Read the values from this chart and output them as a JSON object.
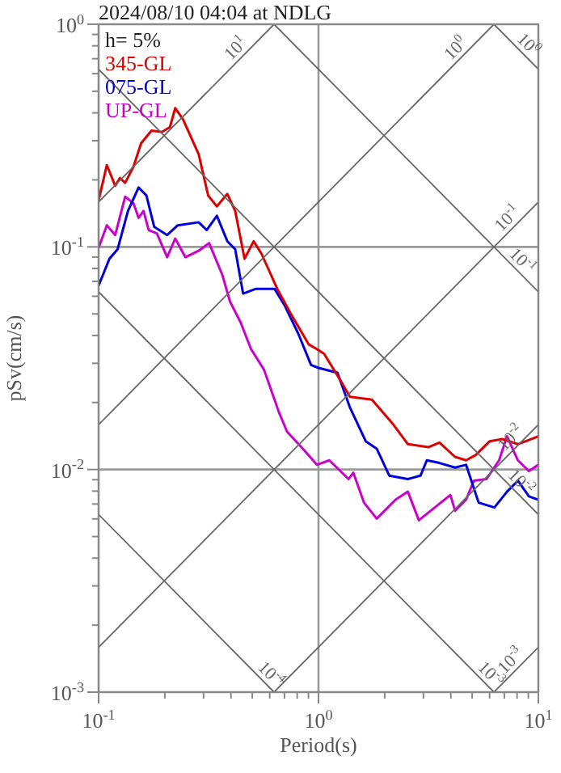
{
  "chart_data": {
    "type": "line",
    "title": "2024/08/10 04:04 at NDLG",
    "xlabel": "Period(s)",
    "ylabel": "pSv(cm/s)",
    "log": "xy",
    "grid": true,
    "legend": "top left",
    "xlim": [
      0.1,
      10
    ],
    "ylim": [
      0.001,
      1
    ],
    "xticks": [
      {
        "value": 0.1,
        "label": "10$^{-1}$"
      },
      {
        "value": 0.2,
        "label": null
      },
      {
        "value": 0.3,
        "label": null
      },
      {
        "value": 0.4,
        "label": null
      },
      {
        "value": 0.5,
        "label": null
      },
      {
        "value": 0.6,
        "label": null
      },
      {
        "value": 0.7,
        "label": null
      },
      {
        "value": 0.8,
        "label": null
      },
      {
        "value": 0.9,
        "label": null
      },
      {
        "value": 1,
        "label": "10$^{0}$"
      },
      {
        "value": 2,
        "label": null
      },
      {
        "value": 3,
        "label": null
      },
      {
        "value": 4,
        "label": null
      },
      {
        "value": 5,
        "label": null
      },
      {
        "value": 6,
        "label": null
      },
      {
        "value": 7,
        "label": null
      },
      {
        "value": 8,
        "label": null
      },
      {
        "value": 9,
        "label": null
      },
      {
        "value": 10,
        "label": "10$^{1}$"
      }
    ],
    "yticks": [
      {
        "value": 0.001,
        "label": "10$^{-3}$"
      },
      {
        "value": 0.002,
        "label": null
      },
      {
        "value": 0.003,
        "label": null
      },
      {
        "value": 0.004,
        "label": null
      },
      {
        "value": 0.005,
        "label": null
      },
      {
        "value": 0.006,
        "label": null
      },
      {
        "value": 0.007,
        "label": null
      },
      {
        "value": 0.008,
        "label": null
      },
      {
        "value": 0.009,
        "label": null
      },
      {
        "value": 0.01,
        "label": "10$^{-2}$"
      },
      {
        "value": 0.02,
        "label": null
      },
      {
        "value": 0.03,
        "label": null
      },
      {
        "value": 0.04,
        "label": null
      },
      {
        "value": 0.05,
        "label": null
      },
      {
        "value": 0.06,
        "label": null
      },
      {
        "value": 0.07,
        "label": null
      },
      {
        "value": 0.08,
        "label": null
      },
      {
        "value": 0.09,
        "label": null
      },
      {
        "value": 0.1,
        "label": "10$^{-1}$"
      },
      {
        "value": 0.2,
        "label": null
      },
      {
        "value": 0.3,
        "label": null
      },
      {
        "value": 0.4,
        "label": null
      },
      {
        "value": 0.5,
        "label": null
      },
      {
        "value": 0.6,
        "label": null
      },
      {
        "value": 0.7,
        "label": null
      },
      {
        "value": 0.8,
        "label": null
      },
      {
        "value": 0.9,
        "label": null
      },
      {
        "value": 1,
        "label": "10$^{0}$"
      }
    ],
    "annotations": [
      "h= 5%",
      {
        "text": "10$^{1}$",
        "x": 0.454,
        "y": 0.723
      },
      {
        "text": "10$^{0}$",
        "x": 4.54,
        "y": 0.723
      },
      {
        "text": "10$^{0}$",
        "x": 8.34,
        "y": 0.753
      },
      {
        "text": "10$^{-1}$",
        "x": 7.82,
        "y": 0.1245
      },
      {
        "text": "10$^{-1}$",
        "x": 7.82,
        "y": 0.0803
      },
      {
        "text": "10$^{-2}$",
        "x": 8.07,
        "y": 0.01285
      },
      {
        "text": "10$^{-2}$",
        "x": 7.71,
        "y": 0.00815
      },
      {
        "text": "10$^{-3}$",
        "x": 8.07,
        "y": 0.001285
      },
      {
        "text": "10$^{-3}$",
        "x": 5.62,
        "y": 0.001117
      },
      {
        "text": "10$^{-4}$",
        "x": 0.562,
        "y": 0.001117
      }
    ],
    "series": [
      {
        "color": "#666666",
        "x": [
          0.1,
          0.628
        ],
        "values": [
          0.159,
          1
        ]
      },
      {
        "color": "#666666",
        "x": [
          0.1,
          6.28
        ],
        "values": [
          0.0159,
          1
        ]
      },
      {
        "color": "#666666",
        "x": [
          0.1,
          10
        ],
        "values": [
          0.00159,
          0.159
        ]
      },
      {
        "color": "#666666",
        "x": [
          0.628,
          10
        ],
        "values": [
          0.001,
          0.0159
        ]
      },
      {
        "color": "#666666",
        "x": [
          6.28,
          10
        ],
        "values": [
          0.001,
          0.00159
        ]
      },
      {
        "color": "#666666",
        "x": [
          6.28,
          10
        ],
        "values": [
          1,
          0.628
        ]
      },
      {
        "color": "#666666",
        "x": [
          0.628,
          10
        ],
        "values": [
          1,
          0.0628
        ]
      },
      {
        "color": "#666666",
        "x": [
          0.1,
          10
        ],
        "values": [
          0.628,
          0.00628
        ]
      },
      {
        "color": "#666666",
        "x": [
          0.1,
          6.28
        ],
        "values": [
          0.0628,
          0.001
        ]
      },
      {
        "color": "#666666",
        "x": [
          0.1,
          0.628
        ],
        "values": [
          0.00628,
          0.001
        ]
      },
      {
        "name": "345-GL",
        "color": "#dd0000",
        "x": [
          0.1,
          0.109,
          0.119,
          0.125,
          0.132,
          0.144,
          0.156,
          0.174,
          0.194,
          0.211,
          0.223,
          0.242,
          0.285,
          0.315,
          0.345,
          0.385,
          0.418,
          0.461,
          0.507,
          0.551,
          0.649,
          0.765,
          0.902,
          0.98,
          1.06,
          1.26,
          1.39,
          1.75,
          2.17,
          2.55,
          3.16,
          3.55,
          4.18,
          4.69,
          5.18,
          6.01,
          6.85,
          8.07,
          10
        ],
        "values": [
          0.162,
          0.233,
          0.188,
          0.204,
          0.194,
          0.229,
          0.292,
          0.333,
          0.328,
          0.345,
          0.42,
          0.374,
          0.261,
          0.17,
          0.152,
          0.173,
          0.145,
          0.0885,
          0.106,
          0.093,
          0.0648,
          0.0482,
          0.0365,
          0.0348,
          0.0331,
          0.0251,
          0.0212,
          0.0206,
          0.0161,
          0.013,
          0.0126,
          0.0132,
          0.0114,
          0.011,
          0.0116,
          0.0134,
          0.0137,
          0.013,
          0.0141
        ]
      },
      {
        "name": "075-GL",
        "color": "#0000dd",
        "x": [
          0.1,
          0.112,
          0.122,
          0.136,
          0.152,
          0.165,
          0.179,
          0.205,
          0.229,
          0.285,
          0.31,
          0.345,
          0.385,
          0.418,
          0.454,
          0.52,
          0.631,
          0.705,
          0.808,
          0.925,
          1.0,
          1.22,
          1.39,
          1.64,
          1.84,
          2.1,
          2.55,
          2.91,
          3.11,
          3.55,
          4.18,
          4.69,
          5.35,
          6.31,
          7.2,
          8.07,
          9.06,
          10
        ],
        "values": [
          0.067,
          0.0885,
          0.0976,
          0.145,
          0.185,
          0.17,
          0.123,
          0.113,
          0.125,
          0.129,
          0.119,
          0.138,
          0.106,
          0.0976,
          0.0617,
          0.0648,
          0.0648,
          0.0541,
          0.0409,
          0.0295,
          0.0286,
          0.0272,
          0.019,
          0.0134,
          0.0124,
          0.00938,
          0.00906,
          0.00938,
          0.011,
          0.0107,
          0.0102,
          0.0105,
          0.0071,
          0.00675,
          0.00795,
          0.00891,
          0.00757,
          0.00732
        ]
      },
      {
        "name": "UP-GL",
        "color": "#cc00cc",
        "x": [
          0.1,
          0.109,
          0.119,
          0.132,
          0.144,
          0.152,
          0.16,
          0.169,
          0.184,
          0.205,
          0.223,
          0.248,
          0.285,
          0.318,
          0.365,
          0.396,
          0.442,
          0.493,
          0.565,
          0.662,
          0.719,
          0.849,
          0.984,
          1.12,
          1.37,
          1.44,
          1.61,
          1.84,
          2.24,
          2.55,
          2.86,
          3.38,
          3.98,
          4.18,
          4.69,
          5.09,
          5.81,
          6.63,
          7.2,
          8.07,
          9.06,
          10
        ],
        "values": [
          0.0991,
          0.125,
          0.113,
          0.168,
          0.157,
          0.135,
          0.145,
          0.119,
          0.115,
          0.0899,
          0.109,
          0.0899,
          0.096,
          0.104,
          0.075,
          0.0568,
          0.0459,
          0.0348,
          0.0281,
          0.018,
          0.0148,
          0.0124,
          0.0105,
          0.011,
          0.00906,
          0.00968,
          0.0071,
          0.00602,
          0.00732,
          0.00795,
          0.00592,
          0.00675,
          0.00769,
          0.00653,
          0.00732,
          0.00891,
          0.00906,
          0.011,
          0.0141,
          0.011,
          0.00984,
          0.0105
        ]
      }
    ]
  }
}
